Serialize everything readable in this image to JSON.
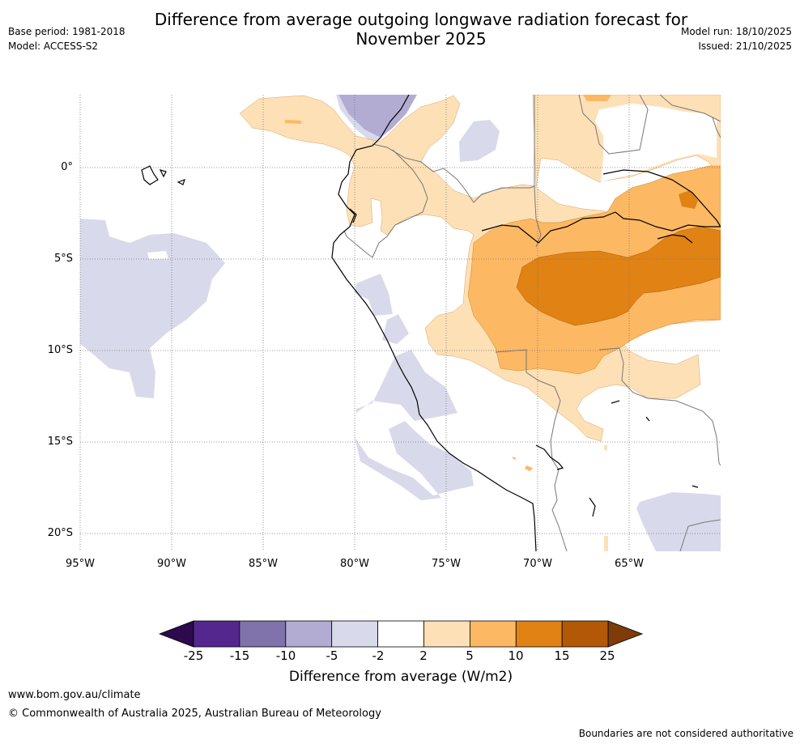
{
  "title": "Difference from average outgoing longwave radiation forecast for November 2025",
  "header": {
    "base_period": "Base period: 1981-2018",
    "model": "Model: ACCESS-S2",
    "model_run": "Model run: 18/10/2025",
    "issued": "Issued: 21/10/2025"
  },
  "map": {
    "lat_labels": [
      "0°",
      "5°S",
      "10°S",
      "15°S",
      "20°S"
    ],
    "lon_labels": [
      "95°W",
      "90°W",
      "85°W",
      "80°W",
      "75°W",
      "70°W",
      "65°W"
    ]
  },
  "colorbar": {
    "ticks": [
      "-25",
      "-15",
      "-10",
      "-5",
      "-2",
      "2",
      "5",
      "10",
      "15",
      "25"
    ],
    "colors": [
      "#2d0a4e",
      "#54278f",
      "#8073ac",
      "#b2abd2",
      "#d8daeb",
      "#ffffff",
      "#fee0b6",
      "#fdb863",
      "#e08214",
      "#b35806",
      "#7f3b08"
    ],
    "label": "Difference from average (W/m2)"
  },
  "footer": {
    "website": "www.bom.gov.au/climate",
    "copyright": "© Commonwealth of Australia 2025, Australian Bureau of Meteorology",
    "disclaimer": "Boundaries are not considered authoritative"
  }
}
